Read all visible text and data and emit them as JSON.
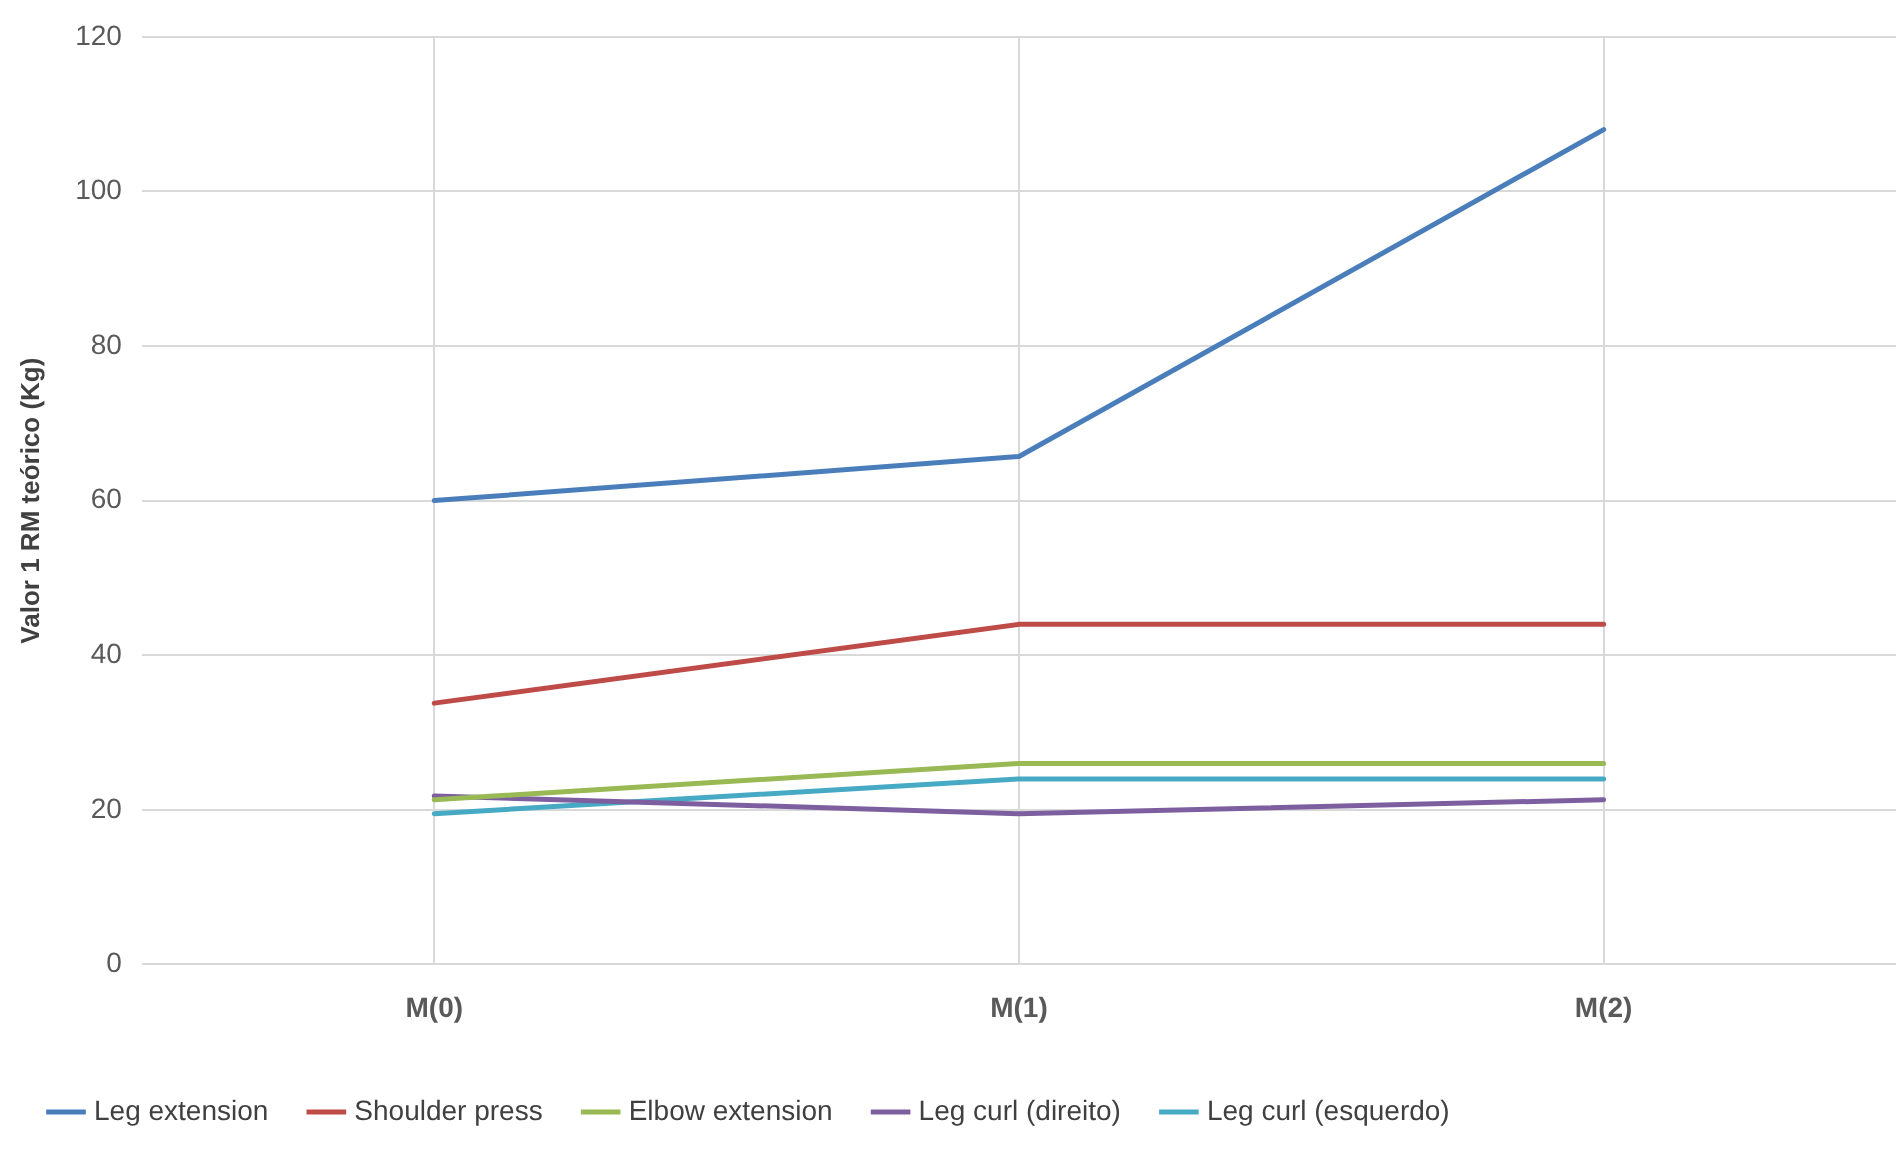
{
  "chart_data": {
    "type": "line",
    "ylabel": "Valor 1 RM teórico (Kg)",
    "categories": [
      "M(0)",
      "M(1)",
      "M(2)"
    ],
    "series": [
      {
        "name": "Leg extension",
        "color": "#4a7ebb",
        "values": [
          60,
          65.7,
          108
        ]
      },
      {
        "name": "Shoulder press",
        "color": "#be4b48",
        "values": [
          33.8,
          44,
          44
        ]
      },
      {
        "name": "Elbow extension",
        "color": "#98b954",
        "values": [
          21.3,
          26,
          26
        ]
      },
      {
        "name": "Leg curl (direito)",
        "color": "#7d5fa0",
        "values": [
          21.8,
          19.5,
          21.3
        ]
      },
      {
        "name": "Leg curl (esquerdo)",
        "color": "#46aac5",
        "values": [
          19.5,
          24,
          24
        ]
      }
    ],
    "ylim": [
      0,
      120
    ],
    "yticks": [
      0,
      20,
      40,
      60,
      80,
      100,
      120
    ],
    "grid": true,
    "legend": "bottom",
    "marker": "none",
    "line_style": "solid"
  }
}
